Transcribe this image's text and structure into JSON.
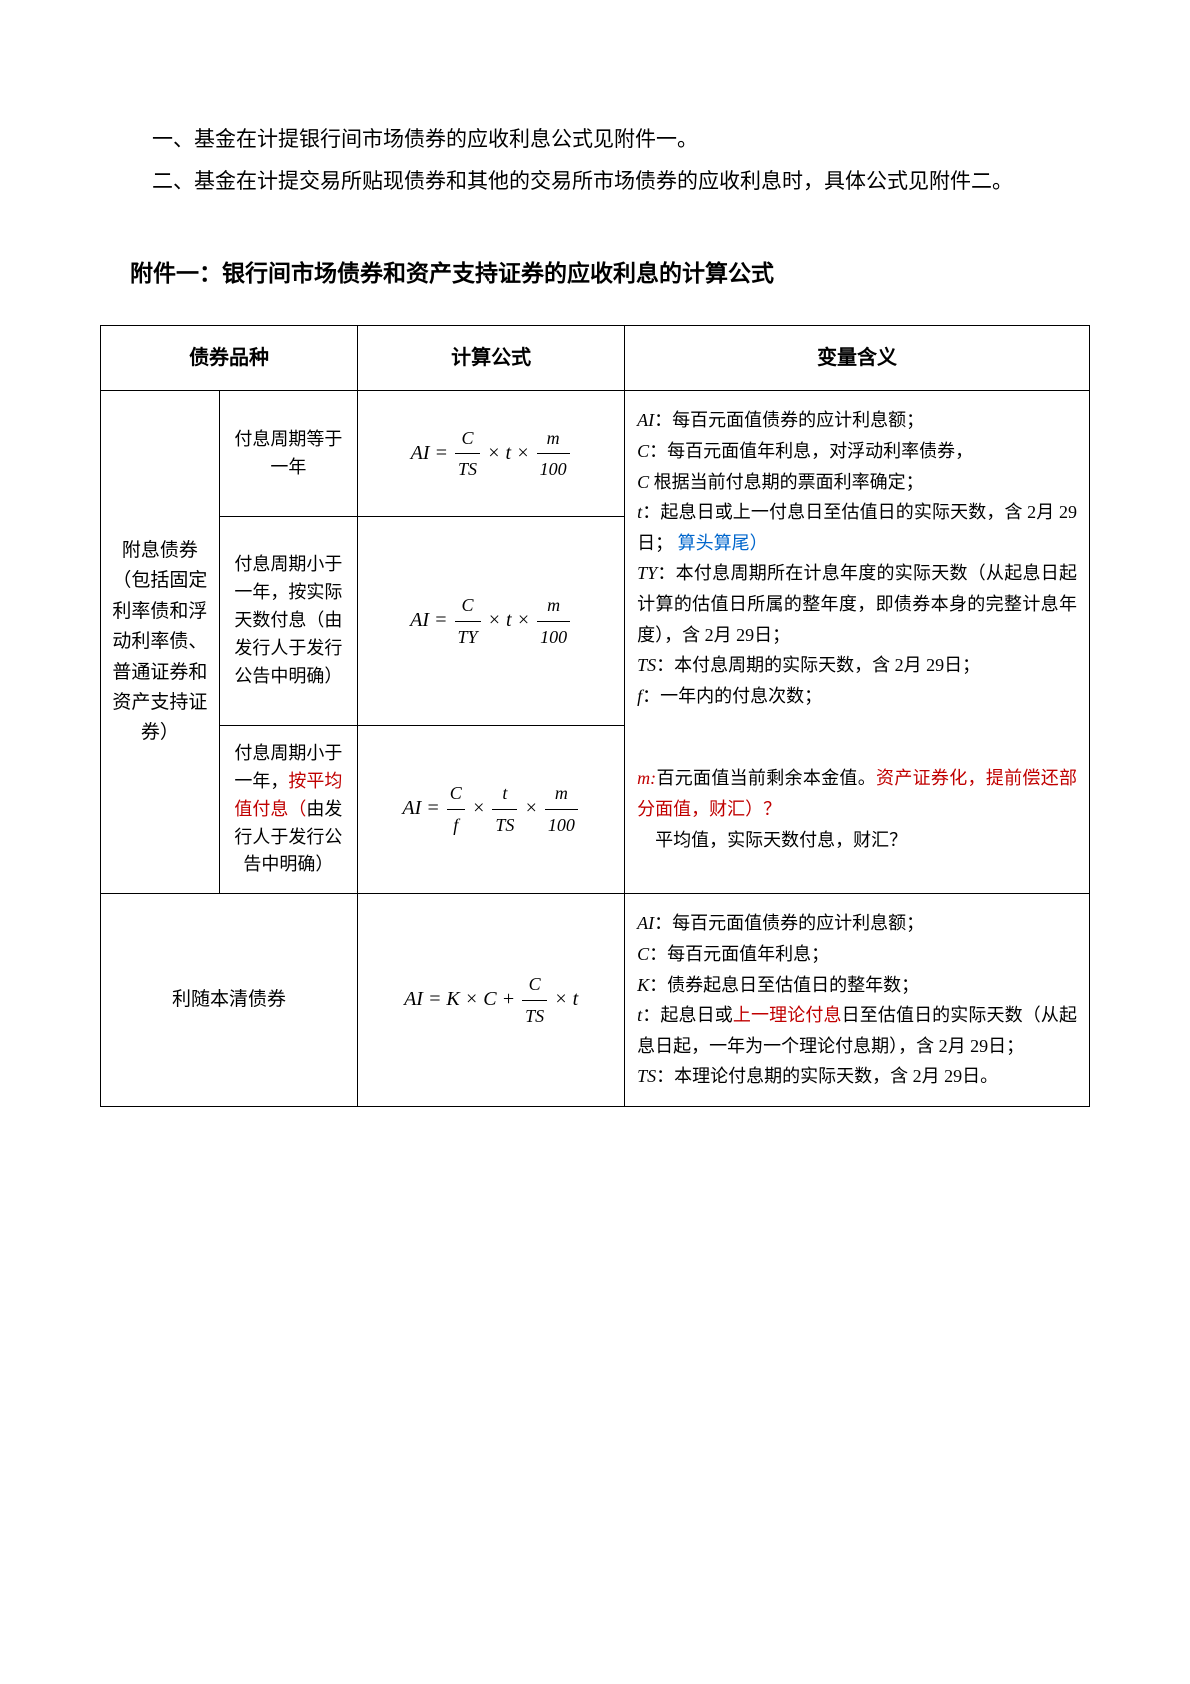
{
  "intro": {
    "p1": "一、基金在计提银行间市场债券的应收利息公式见附件一。",
    "p2": "二、基金在计提交易所贴现债券和其他的交易所市场债券的应收利息时，具体公式见附件二。"
  },
  "section_title": "附件一：银行间市场债券和资产支持证券的应收利息的计算公式",
  "headers": {
    "bond_type": "债券品种",
    "formula": "计算公式",
    "variables": "变量含义"
  },
  "row1": {
    "bond_type_main": "附息债券（包括固定利率债和浮动利率债、普通证券和资产支持证券）",
    "sub1": "付息周期等于一年",
    "sub2_a": "付息周期小于一年，按实际天数付息（由发行人于发行公告中明确）",
    "sub3_a": "付息周期小于一年，",
    "sub3_b": "按平均值付息（",
    "sub3_c": "由发行人于发行公告中明确）",
    "formula1": {
      "lhs": "AI =",
      "n1": "C",
      "d1": "TS",
      "mid": "× t ×",
      "n2": "m",
      "d2": "100"
    },
    "formula2": {
      "lhs": "AI =",
      "n1": "C",
      "d1": "TY",
      "mid": "× t ×",
      "n2": "m",
      "d2": "100"
    },
    "formula3": {
      "lhs": "AI =",
      "n1": "C",
      "d1": "f",
      "m1": "×",
      "n2": "t",
      "d2": "TS",
      "m2": "×",
      "n3": "m",
      "d3": "100"
    },
    "variables_top": {
      "l1a": "AI",
      "l1b": "：每百元面值债券的应计利息额；",
      "l2a": "C",
      "l2b": "：每百元面值年利息，对浮动利率债券，",
      "l3a": "C",
      "l3b": " 根据当前付息期的票面利率确定；",
      "l4a": "t",
      "l4b": "：起息日或上一付息日至估值日的实际天数，含 2月 29日；",
      "l4c": " 算头算尾）",
      "l5a": "TY",
      "l5b": "：本付息周期所在计息年度的实际天数（从起息日起计算的估值日所属的整年度，即债券本身的完整计息年度），含 2月 29日；",
      "l6a": "TS",
      "l6b": "：本付息周期的实际天数，含 2月 29日；",
      "l7a": "f",
      "l7b": "：一年内的付息次数；"
    },
    "variables_bot": {
      "l8a": "m:",
      "l8b": "百元面值当前剩余本金值。",
      "l8c": "资产证券化，提前偿还部分面值，财汇）？",
      "l9": "平均值，实际天数付息，财汇？"
    }
  },
  "row2": {
    "bond_type": "利随本清债券",
    "formula": {
      "lhs": "AI = K × C +",
      "n1": "C",
      "d1": "TS",
      "tail": "× t"
    },
    "variables": {
      "l1a": "AI",
      "l1b": "：每百元面值债券的应计利息额；",
      "l2a": "C",
      "l2b": "：每百元面值年利息；",
      "l3a": "K",
      "l3b": "：债券起息日至估值日的整年数；",
      "l4a": "t",
      "l4b": "：起息日或",
      "l4c": "上一理论付息",
      "l4d": "日至估值日的实际天数（从起息日起，一年为一个理论付息期），含 2月 29日；",
      "l5a": "TS",
      "l5b": "：本理论付息期的实际天数，含 2月 29日。"
    }
  }
}
